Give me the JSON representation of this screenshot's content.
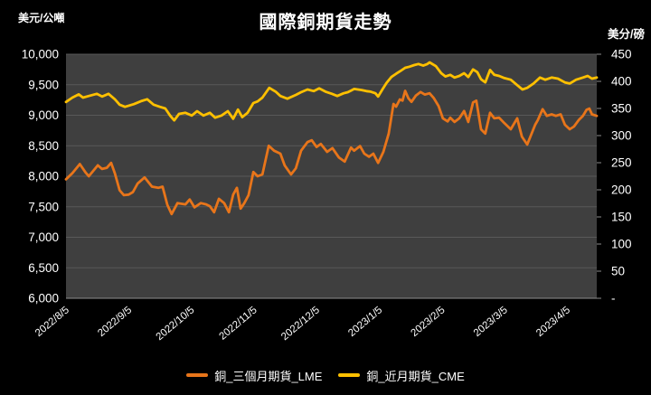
{
  "chart_data": {
    "type": "line",
    "title": "國際銅期貨走勢",
    "grid": "horizontal",
    "legend_position": "bottom",
    "background": "#000000",
    "plot_background": "#3F3F3F",
    "gridline_color": "#595959",
    "axis_line_color": "#8C8C8C",
    "text_color": "#FFFFFF",
    "y_left": {
      "label": "美元/公噸",
      "min": 6000,
      "max": 10000,
      "tick_step": 500,
      "ticks": [
        {
          "label": "10,000",
          "value": 10000
        },
        {
          "label": "9,500",
          "value": 9500
        },
        {
          "label": "9,000",
          "value": 9000
        },
        {
          "label": "8,500",
          "value": 8500
        },
        {
          "label": "8,000",
          "value": 8000
        },
        {
          "label": "7,500",
          "value": 7500
        },
        {
          "label": "7,000",
          "value": 7000
        },
        {
          "label": "6,500",
          "value": 6500
        },
        {
          "label": "6,000",
          "value": 6000
        }
      ]
    },
    "y_right": {
      "label": "美分/磅",
      "min": 0,
      "max": 450,
      "tick_step": 50,
      "ticks": [
        {
          "label": "450",
          "value": 450
        },
        {
          "label": "400",
          "value": 400
        },
        {
          "label": "350",
          "value": 350
        },
        {
          "label": "300",
          "value": 300
        },
        {
          "label": "250",
          "value": 250
        },
        {
          "label": "200",
          "value": 200
        },
        {
          "label": "150",
          "value": 150
        },
        {
          "label": "100",
          "value": 100
        },
        {
          "label": "50",
          "value": 50
        },
        {
          "label": "-",
          "value": 0
        }
      ]
    },
    "x_ticks": [
      {
        "label": "2022/8/5",
        "f": 0.0
      },
      {
        "label": "2022/9/5",
        "f": 0.118
      },
      {
        "label": "2022/10/5",
        "f": 0.236
      },
      {
        "label": "2022/11/5",
        "f": 0.354
      },
      {
        "label": "2022/12/5",
        "f": 0.472
      },
      {
        "label": "2023/1/5",
        "f": 0.59
      },
      {
        "label": "2023/2/5",
        "f": 0.708
      },
      {
        "label": "2023/3/5",
        "f": 0.826
      },
      {
        "label": "2023/4/5",
        "f": 0.944
      }
    ],
    "series": [
      {
        "name": "銅_三個月期貨_LME",
        "axis": "left",
        "color": "#E8751A",
        "points": [
          [
            0.0,
            7950
          ],
          [
            0.012,
            8050
          ],
          [
            0.026,
            8200
          ],
          [
            0.037,
            8060
          ],
          [
            0.043,
            8000
          ],
          [
            0.06,
            8180
          ],
          [
            0.068,
            8120
          ],
          [
            0.077,
            8140
          ],
          [
            0.085,
            8220
          ],
          [
            0.092,
            8050
          ],
          [
            0.101,
            7770
          ],
          [
            0.109,
            7690
          ],
          [
            0.118,
            7700
          ],
          [
            0.126,
            7740
          ],
          [
            0.135,
            7880
          ],
          [
            0.148,
            7980
          ],
          [
            0.162,
            7830
          ],
          [
            0.174,
            7810
          ],
          [
            0.182,
            7830
          ],
          [
            0.191,
            7530
          ],
          [
            0.199,
            7380
          ],
          [
            0.21,
            7560
          ],
          [
            0.225,
            7540
          ],
          [
            0.233,
            7620
          ],
          [
            0.242,
            7490
          ],
          [
            0.254,
            7560
          ],
          [
            0.264,
            7540
          ],
          [
            0.271,
            7510
          ],
          [
            0.279,
            7410
          ],
          [
            0.288,
            7630
          ],
          [
            0.298,
            7560
          ],
          [
            0.307,
            7410
          ],
          [
            0.315,
            7700
          ],
          [
            0.322,
            7810
          ],
          [
            0.329,
            7470
          ],
          [
            0.336,
            7560
          ],
          [
            0.344,
            7690
          ],
          [
            0.353,
            8070
          ],
          [
            0.361,
            8000
          ],
          [
            0.37,
            8030
          ],
          [
            0.382,
            8500
          ],
          [
            0.392,
            8420
          ],
          [
            0.404,
            8370
          ],
          [
            0.412,
            8180
          ],
          [
            0.424,
            8030
          ],
          [
            0.433,
            8130
          ],
          [
            0.443,
            8420
          ],
          [
            0.455,
            8560
          ],
          [
            0.463,
            8590
          ],
          [
            0.472,
            8480
          ],
          [
            0.48,
            8530
          ],
          [
            0.492,
            8400
          ],
          [
            0.502,
            8460
          ],
          [
            0.514,
            8310
          ],
          [
            0.525,
            8240
          ],
          [
            0.537,
            8470
          ],
          [
            0.543,
            8420
          ],
          [
            0.554,
            8495
          ],
          [
            0.562,
            8370
          ],
          [
            0.571,
            8320
          ],
          [
            0.579,
            8370
          ],
          [
            0.588,
            8220
          ],
          [
            0.598,
            8400
          ],
          [
            0.608,
            8700
          ],
          [
            0.617,
            9185
          ],
          [
            0.622,
            9140
          ],
          [
            0.629,
            9260
          ],
          [
            0.634,
            9240
          ],
          [
            0.639,
            9400
          ],
          [
            0.645,
            9280
          ],
          [
            0.651,
            9220
          ],
          [
            0.659,
            9320
          ],
          [
            0.668,
            9380
          ],
          [
            0.676,
            9340
          ],
          [
            0.685,
            9360
          ],
          [
            0.693,
            9280
          ],
          [
            0.702,
            9150
          ],
          [
            0.71,
            8950
          ],
          [
            0.719,
            8900
          ],
          [
            0.724,
            8960
          ],
          [
            0.732,
            8890
          ],
          [
            0.741,
            8950
          ],
          [
            0.75,
            9070
          ],
          [
            0.758,
            8890
          ],
          [
            0.767,
            9210
          ],
          [
            0.773,
            9240
          ],
          [
            0.782,
            8770
          ],
          [
            0.79,
            8700
          ],
          [
            0.799,
            9040
          ],
          [
            0.807,
            8950
          ],
          [
            0.816,
            8960
          ],
          [
            0.826,
            8870
          ],
          [
            0.838,
            8770
          ],
          [
            0.85,
            8950
          ],
          [
            0.859,
            8650
          ],
          [
            0.869,
            8520
          ],
          [
            0.884,
            8845
          ],
          [
            0.889,
            8920
          ],
          [
            0.898,
            9100
          ],
          [
            0.906,
            8990
          ],
          [
            0.915,
            9015
          ],
          [
            0.923,
            8990
          ],
          [
            0.932,
            9015
          ],
          [
            0.94,
            8845
          ],
          [
            0.949,
            8770
          ],
          [
            0.957,
            8815
          ],
          [
            0.966,
            8920
          ],
          [
            0.974,
            8990
          ],
          [
            0.981,
            9090
          ],
          [
            0.986,
            9110
          ],
          [
            0.991,
            9015
          ],
          [
            1.0,
            8990
          ]
        ]
      },
      {
        "name": "銅_近月期貨_CME",
        "axis": "right",
        "color": "#FFC000",
        "points": [
          [
            0.0,
            362
          ],
          [
            0.012,
            370
          ],
          [
            0.024,
            376
          ],
          [
            0.032,
            370
          ],
          [
            0.043,
            373
          ],
          [
            0.058,
            377
          ],
          [
            0.068,
            372
          ],
          [
            0.08,
            377
          ],
          [
            0.092,
            367
          ],
          [
            0.101,
            357
          ],
          [
            0.111,
            353
          ],
          [
            0.128,
            358
          ],
          [
            0.143,
            364
          ],
          [
            0.153,
            367
          ],
          [
            0.165,
            357
          ],
          [
            0.177,
            353
          ],
          [
            0.187,
            350
          ],
          [
            0.196,
            337
          ],
          [
            0.204,
            328
          ],
          [
            0.213,
            340
          ],
          [
            0.225,
            342
          ],
          [
            0.237,
            337
          ],
          [
            0.247,
            345
          ],
          [
            0.259,
            337
          ],
          [
            0.271,
            342
          ],
          [
            0.281,
            333
          ],
          [
            0.293,
            337
          ],
          [
            0.305,
            345
          ],
          [
            0.315,
            331
          ],
          [
            0.324,
            348
          ],
          [
            0.332,
            334
          ],
          [
            0.342,
            342
          ],
          [
            0.353,
            360
          ],
          [
            0.361,
            363
          ],
          [
            0.37,
            370
          ],
          [
            0.383,
            388
          ],
          [
            0.395,
            381
          ],
          [
            0.404,
            373
          ],
          [
            0.417,
            368
          ],
          [
            0.433,
            375
          ],
          [
            0.443,
            380
          ],
          [
            0.455,
            385
          ],
          [
            0.467,
            382
          ],
          [
            0.477,
            387
          ],
          [
            0.489,
            381
          ],
          [
            0.501,
            377
          ],
          [
            0.511,
            373
          ],
          [
            0.523,
            378
          ],
          [
            0.531,
            380
          ],
          [
            0.537,
            383
          ],
          [
            0.543,
            386
          ],
          [
            0.557,
            384
          ],
          [
            0.566,
            382
          ],
          [
            0.574,
            381
          ],
          [
            0.583,
            378
          ],
          [
            0.588,
            372
          ],
          [
            0.596,
            385
          ],
          [
            0.604,
            397
          ],
          [
            0.613,
            408
          ],
          [
            0.622,
            414
          ],
          [
            0.63,
            419
          ],
          [
            0.639,
            425
          ],
          [
            0.647,
            427
          ],
          [
            0.656,
            430
          ],
          [
            0.664,
            432
          ],
          [
            0.673,
            429
          ],
          [
            0.681,
            432
          ],
          [
            0.685,
            435
          ],
          [
            0.697,
            428
          ],
          [
            0.707,
            415
          ],
          [
            0.715,
            409
          ],
          [
            0.724,
            412
          ],
          [
            0.732,
            407
          ],
          [
            0.741,
            410
          ],
          [
            0.75,
            415
          ],
          [
            0.758,
            408
          ],
          [
            0.767,
            422
          ],
          [
            0.775,
            417
          ],
          [
            0.782,
            404
          ],
          [
            0.79,
            398
          ],
          [
            0.799,
            421
          ],
          [
            0.807,
            412
          ],
          [
            0.816,
            410
          ],
          [
            0.826,
            406
          ],
          [
            0.838,
            403
          ],
          [
            0.85,
            393
          ],
          [
            0.86,
            385
          ],
          [
            0.869,
            388
          ],
          [
            0.881,
            396
          ],
          [
            0.893,
            407
          ],
          [
            0.903,
            403
          ],
          [
            0.915,
            407
          ],
          [
            0.927,
            405
          ],
          [
            0.94,
            398
          ],
          [
            0.949,
            396
          ],
          [
            0.961,
            403
          ],
          [
            0.974,
            407
          ],
          [
            0.983,
            410
          ],
          [
            0.991,
            405
          ],
          [
            1.0,
            407
          ]
        ]
      }
    ]
  }
}
